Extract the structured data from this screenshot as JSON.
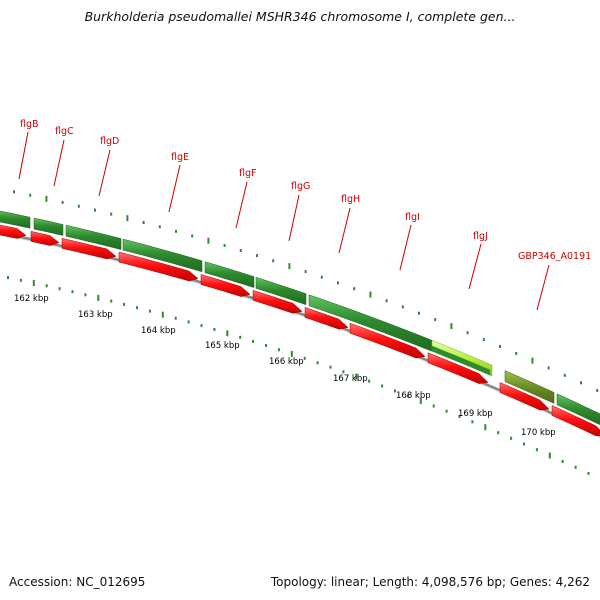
{
  "title": "Burkholderia pseudomallei MSHR346 chromosome I, complete gen...",
  "footer": {
    "accession": "Accession: NC_012695",
    "summary": "Topology: linear; Length: 4,098,576 bp; Genes: 4,262"
  },
  "colors": {
    "gene_track": "#2e8b2e",
    "cds_track": "#ff1010",
    "highlight_gene": "#b8f03c",
    "pseudo_gene": "#6b8e23",
    "backbone": "#888888",
    "label": "#cc0000",
    "tick": "#2e8b2e"
  },
  "genes": [
    {
      "name": "flgB"
    },
    {
      "name": "flgC"
    },
    {
      "name": "flgD"
    },
    {
      "name": "flgE"
    },
    {
      "name": "flgF"
    },
    {
      "name": "flgG"
    },
    {
      "name": "flgH"
    },
    {
      "name": "flgI"
    },
    {
      "name": "flgJ"
    },
    {
      "name": "GBP346_A0191"
    }
  ],
  "scale_labels": [
    "162 kbp",
    "163 kbp",
    "164 kbp",
    "165 kbp",
    "166 kbp",
    "167 kbp",
    "168 kbp",
    "169 kbp",
    "170 kbp"
  ]
}
